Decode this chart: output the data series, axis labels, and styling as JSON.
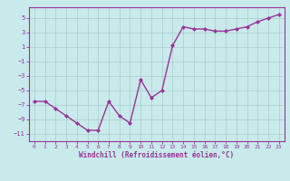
{
  "x": [
    0,
    1,
    2,
    3,
    4,
    5,
    6,
    7,
    8,
    9,
    10,
    11,
    12,
    13,
    14,
    15,
    16,
    17,
    18,
    19,
    20,
    21,
    22,
    23
  ],
  "y": [
    -6.5,
    -6.5,
    -7.5,
    -8.5,
    -9.5,
    -10.5,
    -10.5,
    -6.5,
    -8.5,
    -9.5,
    -3.5,
    -6.0,
    -5.0,
    1.2,
    3.8,
    3.5,
    3.5,
    3.2,
    3.2,
    3.5,
    3.8,
    4.5,
    5.0,
    5.5
  ],
  "line_color": "#993399",
  "marker": "D",
  "marker_size": 2,
  "bg_color": "#c8eaea",
  "grid_color": "#aacccc",
  "xlabel": "Windchill (Refroidissement éolien,°C)",
  "ylabel": "",
  "title": "",
  "xlim": [
    -0.5,
    23.5
  ],
  "ylim": [
    -12,
    6.5
  ],
  "yticks": [
    -11,
    -9,
    -7,
    -5,
    -3,
    -1,
    1,
    3,
    5
  ],
  "xticks": [
    0,
    1,
    2,
    3,
    4,
    5,
    6,
    7,
    8,
    9,
    10,
    11,
    12,
    13,
    14,
    15,
    16,
    17,
    18,
    19,
    20,
    21,
    22,
    23
  ],
  "tick_color": "#993399",
  "label_color": "#993399",
  "spine_color": "#993399",
  "linewidth": 1.0
}
